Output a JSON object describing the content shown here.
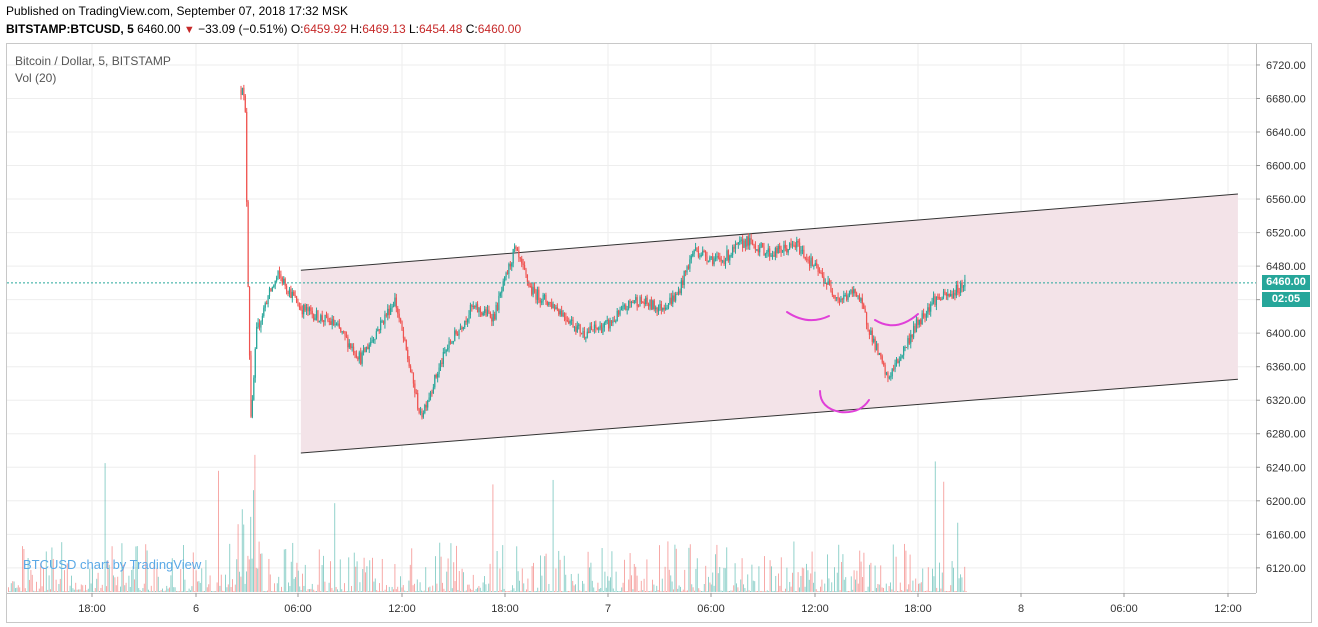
{
  "header": {
    "published": "Published on TradingView.com, September 07, 2018 17:32 MSK",
    "symbol": "BITSTAMP:BTCUSD, 5",
    "last": "6460.00",
    "change_arrow": "▼",
    "change": "−33.09 (−0.51%)",
    "o_label": "O:",
    "o_value": "6459.92",
    "h_label": "H:",
    "h_value": "6469.13",
    "l_label": "L:",
    "l_value": "6454.48",
    "c_label": "C:",
    "c_value": "6460.00"
  },
  "legend": {
    "series": "Bitcoin / Dollar, 5, BITSTAMP",
    "indicator": "Vol (20)"
  },
  "price_tag": {
    "price": "6460.00",
    "countdown": "02:05"
  },
  "watermark": "BTCUSD chart by TradingView",
  "colors": {
    "up": "#26a69a",
    "down": "#ef5350",
    "channel_fill": "#f3e3e8",
    "annotation": "#e040d8",
    "price_line": "#26a69a"
  },
  "chart_data": {
    "type": "candlestick",
    "x_ticks": [
      "18:00",
      "6",
      "06:00",
      "12:00",
      "18:00",
      "7",
      "06:00",
      "12:00",
      "18:00",
      "8",
      "06:00",
      "12:00"
    ],
    "y_ticks": [
      "6120.00",
      "6160.00",
      "6200.00",
      "6240.00",
      "6280.00",
      "6320.00",
      "6360.00",
      "6400.00",
      "6440.00",
      "6480.00",
      "6520.00",
      "6560.00",
      "6600.00",
      "6640.00",
      "6680.00",
      "6720.00"
    ],
    "ylim": [
      6090,
      6745
    ],
    "last_price": 6460.0,
    "price_path_hours": [
      [
        0,
        6690
      ],
      [
        0.08,
        6700
      ],
      [
        0.25,
        6660
      ],
      [
        0.45,
        6420
      ],
      [
        0.6,
        6290
      ],
      [
        0.9,
        6400
      ],
      [
        1.5,
        6440
      ],
      [
        2.2,
        6470
      ],
      [
        3.5,
        6430
      ],
      [
        5.5,
        6410
      ],
      [
        7.0,
        6370
      ],
      [
        9.0,
        6440
      ],
      [
        10.5,
        6300
      ],
      [
        12.0,
        6380
      ],
      [
        13.5,
        6430
      ],
      [
        14.8,
        6420
      ],
      [
        16.0,
        6500
      ],
      [
        17.0,
        6450
      ],
      [
        18.5,
        6430
      ],
      [
        20.0,
        6400
      ],
      [
        21.5,
        6410
      ],
      [
        23.0,
        6440
      ],
      [
        24.5,
        6430
      ],
      [
        25.5,
        6445
      ],
      [
        26.5,
        6500
      ],
      [
        28.0,
        6485
      ],
      [
        29.5,
        6510
      ],
      [
        31.0,
        6495
      ],
      [
        32.5,
        6505
      ],
      [
        33.5,
        6480
      ],
      [
        35.0,
        6440
      ],
      [
        36.0,
        6450
      ],
      [
        37.0,
        6390
      ],
      [
        37.8,
        6345
      ],
      [
        38.5,
        6370
      ],
      [
        39.5,
        6410
      ],
      [
        40.5,
        6440
      ],
      [
        41.5,
        6445
      ],
      [
        42.4,
        6462
      ]
    ],
    "volume": {
      "axis_max": 5000,
      "hint_peak": "high spike near 6 03:00"
    },
    "channel": {
      "upper": [
        [
          3.5,
          6475
        ],
        [
          58.3,
          6566
        ]
      ],
      "lower": [
        [
          3.5,
          6257
        ],
        [
          58.3,
          6345
        ]
      ]
    }
  }
}
